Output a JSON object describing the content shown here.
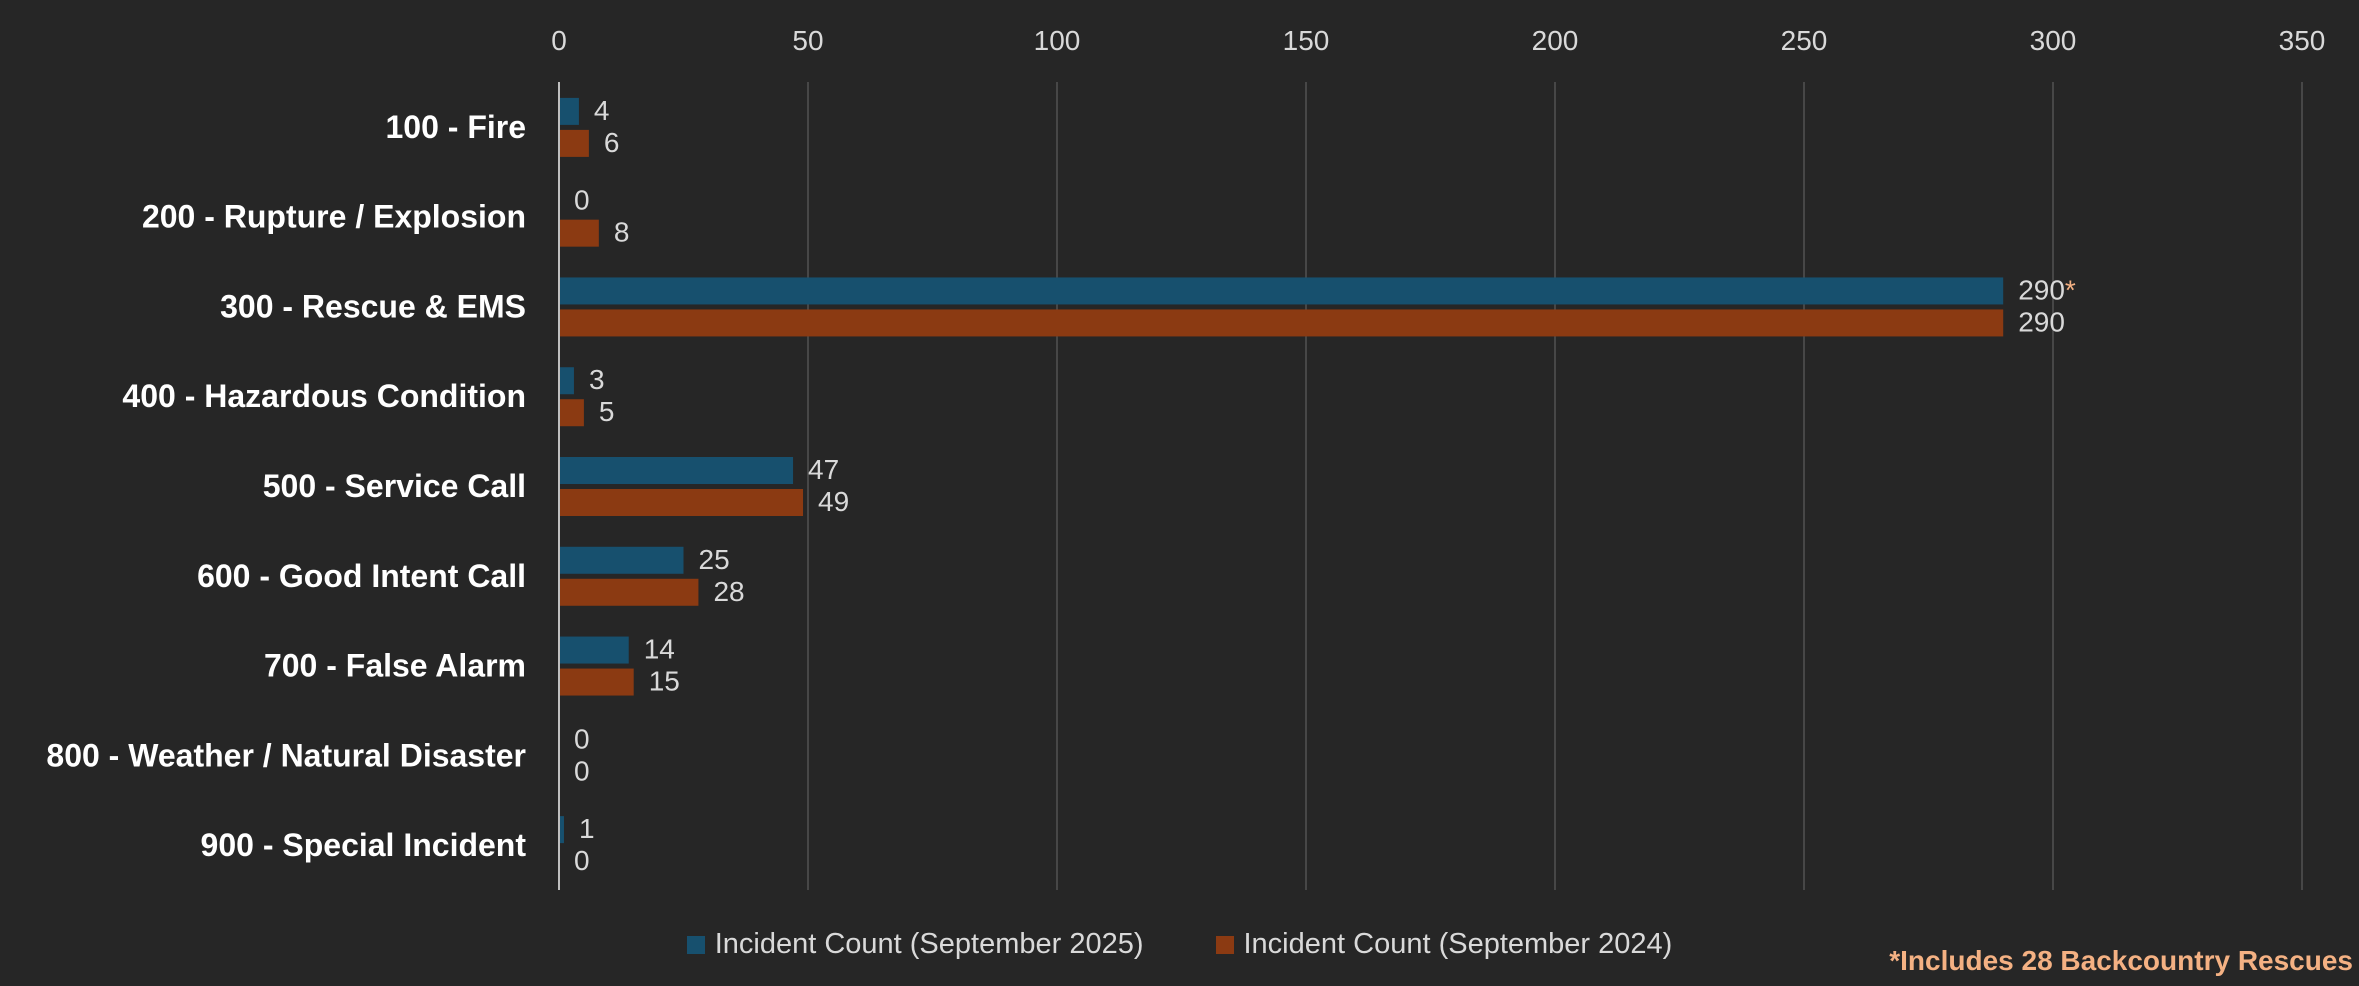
{
  "chart_data": {
    "type": "bar",
    "orientation": "horizontal",
    "categories": [
      "100 - Fire",
      "200 - Rupture / Explosion",
      "300 - Rescue & EMS",
      "400 - Hazardous Condition",
      "500 - Service Call",
      "600 - Good Intent Call",
      "700 - False Alarm",
      "800 - Weather / Natural Disaster",
      "900 - Special Incident"
    ],
    "series": [
      {
        "name": "Incident Count (September 2025)",
        "color": "#17506e",
        "values": [
          4,
          0,
          290,
          3,
          47,
          25,
          14,
          0,
          1
        ]
      },
      {
        "name": "Incident Count (September 2024)",
        "color": "#8b3a12",
        "values": [
          6,
          8,
          290,
          5,
          49,
          28,
          15,
          0,
          0
        ]
      }
    ],
    "xlim": [
      0,
      350
    ],
    "xticks": [
      0,
      50,
      100,
      150,
      200,
      250,
      300,
      350
    ],
    "x_axis_position": "top",
    "grid": true,
    "legend_position": "bottom",
    "annotation_marker": {
      "series": 0,
      "category": 2,
      "text": "*"
    },
    "footnote": "*Includes 28 Backcountry Rescues"
  }
}
